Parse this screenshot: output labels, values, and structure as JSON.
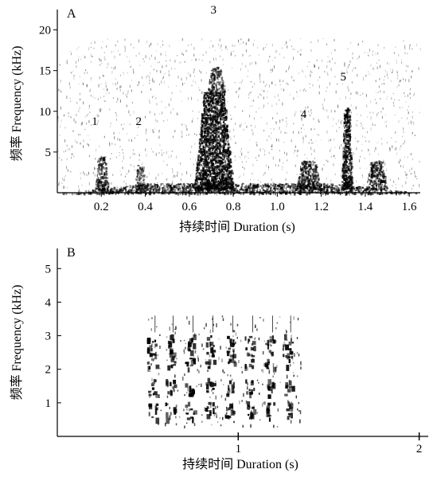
{
  "chart_data": [
    {
      "panel": "A",
      "type": "heatmap",
      "xlabel": "持续时间 Duration (s)",
      "ylabel": "频率 Frequency (kHz)",
      "xticks": [
        "0.2",
        "0.4",
        "0.6",
        "0.8",
        "1.0",
        "1.2",
        "1.4",
        "1.6"
      ],
      "yticks": [
        "5",
        "10",
        "15",
        "20"
      ],
      "xlim": [
        0,
        1.65
      ],
      "ylim": [
        0,
        22.5
      ],
      "grid": false,
      "annotations": [
        {
          "text": "1",
          "x": 0.17,
          "y": 8.3
        },
        {
          "text": "2",
          "x": 0.37,
          "y": 8.3
        },
        {
          "text": "3",
          "x": 0.71,
          "y": 22.0
        },
        {
          "text": "4",
          "x": 1.12,
          "y": 9.2
        },
        {
          "text": "5",
          "x": 1.3,
          "y": 13.8
        }
      ],
      "energy_regions": [
        {
          "x_start": 0.17,
          "x_end": 0.23,
          "f_low": 0.5,
          "f_high": 4.5,
          "intensity": 0.55
        },
        {
          "x_start": 0.35,
          "x_end": 0.4,
          "f_low": 0.5,
          "f_high": 3.5,
          "intensity": 0.35
        },
        {
          "x_start": 0.62,
          "x_end": 0.8,
          "f_low": 0.5,
          "f_high": 12.5,
          "intensity": 0.95
        },
        {
          "x_start": 0.68,
          "x_end": 0.76,
          "f_low": 12.5,
          "f_high": 15.5,
          "intensity": 0.45
        },
        {
          "x_start": 1.08,
          "x_end": 1.2,
          "f_low": 0.5,
          "f_high": 4.0,
          "intensity": 0.6
        },
        {
          "x_start": 1.29,
          "x_end": 1.34,
          "f_low": 0.5,
          "f_high": 10.5,
          "intensity": 0.9
        },
        {
          "x_start": 1.4,
          "x_end": 1.5,
          "f_low": 0.5,
          "f_high": 4.0,
          "intensity": 0.65
        },
        {
          "x_start": 0.0,
          "x_end": 1.65,
          "f_low": 0.0,
          "f_high": 1.2,
          "intensity": 0.7
        }
      ]
    },
    {
      "panel": "B",
      "type": "heatmap",
      "xlabel": "持续时间 Duration (s)",
      "ylabel": "频率 Frequency (kHz)",
      "xticks": [
        "1",
        "2"
      ],
      "yticks": [
        "1",
        "2",
        "3",
        "4",
        "5"
      ],
      "xlim": [
        0,
        2.05
      ],
      "ylim": [
        0,
        5.6
      ],
      "grid": false,
      "pulse_times": [
        0.52,
        0.62,
        0.73,
        0.84,
        0.95,
        1.06,
        1.17,
        1.27
      ],
      "pulse_bands_khz": [
        2.3,
        2.8,
        1.5,
        0.8
      ],
      "energy_region": {
        "x_start": 0.5,
        "x_end": 1.35,
        "f_low": 0.3,
        "f_high": 3.6
      }
    }
  ],
  "colors": {
    "ink": "#000000",
    "background": "#ffffff"
  }
}
